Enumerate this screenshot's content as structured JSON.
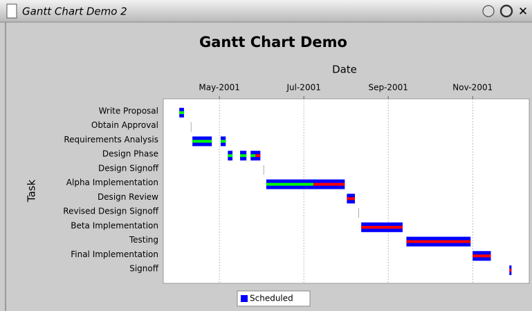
{
  "window": {
    "title": "Gantt Chart Demo 2"
  },
  "chart_data": {
    "type": "gantt",
    "title": "Gantt Chart Demo",
    "x_label": "Date",
    "y_label": "Task",
    "categories": [
      "Write Proposal",
      "Obtain Approval",
      "Requirements Analysis",
      "Design Phase",
      "Design Signoff",
      "Alpha Implementation",
      "Design Review",
      "Revised Design Signoff",
      "Beta Implementation",
      "Testing",
      "Final Implementation",
      "Signoff"
    ],
    "series": [
      {
        "name": "Scheduled",
        "color": "#0000ff",
        "completed_color": "#00ff00",
        "remaining_color": "#ff0000",
        "values": [
          [
            {
              "start": 4.05,
              "end": 4.16,
              "percent": 100
            }
          ],
          [
            {
              "start": 4.33,
              "end": 4.33,
              "percent": 100
            }
          ],
          [
            {
              "start": 4.36,
              "end": 4.82,
              "percent": 100
            },
            {
              "start": 5.03,
              "end": 5.15,
              "percent": 100
            }
          ],
          [
            {
              "start": 5.2,
              "end": 5.31,
              "percent": 100
            },
            {
              "start": 5.49,
              "end": 5.64,
              "percent": 100
            },
            {
              "start": 5.74,
              "end": 5.97,
              "percent": 50
            }
          ],
          [
            {
              "start": 6.05,
              "end": 6.05,
              "percent": 100
            }
          ],
          [
            {
              "start": 6.11,
              "end": 7.97,
              "percent": 60
            }
          ],
          [
            {
              "start": 8.02,
              "end": 8.21,
              "percent": 0
            }
          ],
          [
            {
              "start": 8.3,
              "end": 8.3,
              "percent": 0
            }
          ],
          [
            {
              "start": 8.36,
              "end": 9.34,
              "percent": 0
            }
          ],
          [
            {
              "start": 9.43,
              "end": 10.95,
              "percent": 0
            }
          ],
          [
            {
              "start": 11.0,
              "end": 11.43,
              "percent": 0
            }
          ],
          [
            {
              "start": 11.87,
              "end": 11.92,
              "percent": 0
            }
          ]
        ]
      }
    ],
    "xlim": [
      3.67,
      12.34
    ],
    "xticks": [
      {
        "value": 5,
        "label": "May-2001"
      },
      {
        "value": 7,
        "label": "Jul-2001"
      },
      {
        "value": 9,
        "label": "Sep-2001"
      },
      {
        "value": 11,
        "label": "Nov-2001"
      }
    ],
    "grid": true
  }
}
